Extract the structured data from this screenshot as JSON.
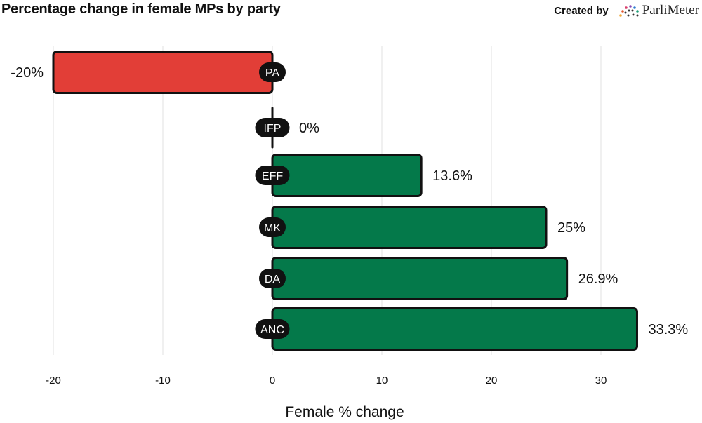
{
  "header": {
    "title": "Percentage change in female MPs by party",
    "credit_prefix": "Created by",
    "brand_name": "ParliMeter",
    "brand_logo_icon": "dotted-arc-logo-icon"
  },
  "colors": {
    "positive": "#04794a",
    "negative": "#e23e37",
    "outline": "#111111",
    "gridline": "#ececec",
    "label_pill": "#111111"
  },
  "chart_data": {
    "type": "bar",
    "orientation": "horizontal",
    "title": "Percentage change in female MPs by party",
    "xlabel": "Female % change",
    "ylabel": "",
    "categories": [
      "PA",
      "IFP",
      "EFF",
      "MK",
      "DA",
      "ANC"
    ],
    "values": [
      -20,
      0,
      13.6,
      25,
      26.9,
      33.3
    ],
    "value_labels": [
      "-20%",
      "0%",
      "13.6%",
      "25%",
      "26.9%",
      "33.3%"
    ],
    "xlim": [
      -20,
      33.3
    ],
    "x_ticks": [
      -20,
      -10,
      0,
      10,
      20,
      30
    ],
    "x_tick_labels": [
      "-20",
      "-10",
      "0",
      "10",
      "20",
      "30"
    ],
    "grid": "vertical",
    "legend": "none"
  }
}
